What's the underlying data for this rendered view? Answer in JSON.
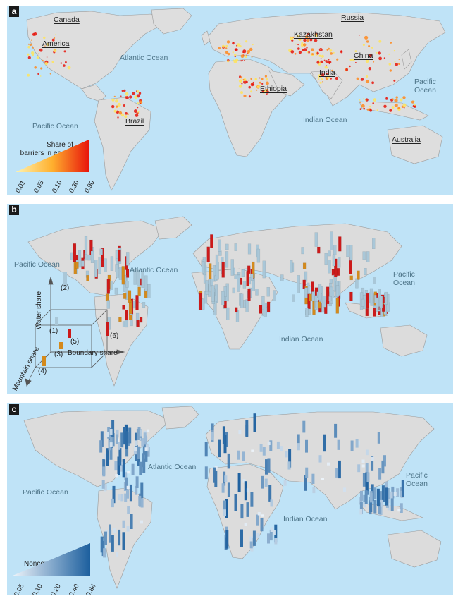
{
  "panel_a": {
    "label": "a",
    "countries": [
      "Canada",
      "America",
      "Brazil",
      "Russia",
      "Kazakhstan",
      "China",
      "India",
      "Ethiopia",
      "Australia"
    ],
    "oceans": {
      "atlantic": "Atlantic Ocean",
      "pacific_left": "Pacific Ocean",
      "pacific_right_1": "Pacific",
      "pacific_right_2": "Ocean",
      "indian": "Indian Ocean"
    },
    "legend": {
      "title_1": "Share of",
      "title_2": "barriers in each city",
      "ticks": [
        "0.01",
        "0.05",
        "0.10",
        "0.30",
        "0.90"
      ],
      "color_low": "#fff3b0",
      "color_high": "#e8150b"
    }
  },
  "panel_b": {
    "label": "b",
    "oceans": {
      "pacific_left": "Pacific Ocean",
      "atlantic": "Atlantic Ocean",
      "pacific_right_1": "Pacific",
      "pacific_right_2": "Ocean",
      "indian": "Indian Ocean"
    },
    "axes": {
      "water": "Water share",
      "mountain": "Mountain share",
      "boundary": "Boundary share"
    },
    "markers": [
      "(1)",
      "(2)",
      "(3)",
      "(4)",
      "(5)",
      "(6)"
    ],
    "colors": {
      "water": "#a9c7d8",
      "mountain": "#d48a1c",
      "boundary": "#cc1a1a"
    }
  },
  "panel_c": {
    "label": "c",
    "oceans": {
      "atlantic": "Atlantic Ocean",
      "pacific_left": "Pacific Ocean",
      "pacific_right_1": "Pacific",
      "pacific_right_2": "Ocean",
      "indian": "Indian Ocean"
    },
    "legend": {
      "title": "Nonconvexity",
      "ticks": [
        "0.05",
        "0.10",
        "0.20",
        "0.40",
        "0.84"
      ],
      "color_low": "#eef4fa",
      "color_high": "#1c5f9e"
    }
  }
}
